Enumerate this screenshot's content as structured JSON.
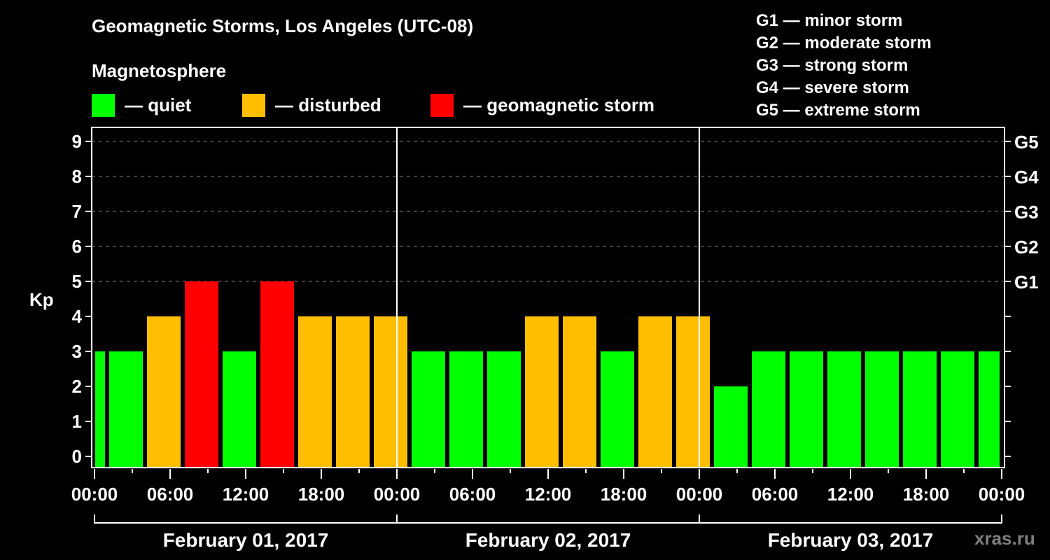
{
  "header": {
    "title": "Geomagnetic Storms, Los Angeles (UTC-08)",
    "subtitle": "Magnetosphere"
  },
  "legend": [
    {
      "label": "— quiet",
      "color": "#00ff00"
    },
    {
      "label": "— disturbed",
      "color": "#ffbf00"
    },
    {
      "label": "— geomagnetic storm",
      "color": "#ff0000"
    }
  ],
  "g_scale": [
    "G1 — minor storm",
    "G2 — moderate storm",
    "G3 — strong storm",
    "G4 — severe storm",
    "G5 — extreme storm"
  ],
  "watermark": "xras.ru",
  "colors": {
    "quiet": "#00ff00",
    "disturbed": "#ffbf00",
    "storm": "#ff0000",
    "grid": "#808080",
    "axis": "#ffffff"
  },
  "chart_data": {
    "type": "bar",
    "title": "Geomagnetic Storms, Los Angeles (UTC-08)",
    "ylabel": "Kp",
    "xlabel": "",
    "ylim": [
      0,
      9
    ],
    "yticks": [
      0,
      1,
      2,
      3,
      4,
      5,
      6,
      7,
      8,
      9
    ],
    "right_axis_labels": [
      {
        "kp": 5,
        "label": "G1"
      },
      {
        "kp": 6,
        "label": "G2"
      },
      {
        "kp": 7,
        "label": "G3"
      },
      {
        "kp": 8,
        "label": "G4"
      },
      {
        "kp": 9,
        "label": "G5"
      }
    ],
    "grid": "dashed horizontal at each Kp unit 5–9",
    "xtick_labels": [
      "00:00",
      "06:00",
      "12:00",
      "18:00",
      "00:00",
      "06:00",
      "12:00",
      "18:00",
      "00:00",
      "06:00",
      "12:00",
      "18:00",
      "00:00"
    ],
    "days": [
      "February 01, 2017",
      "February 02, 2017",
      "February 03, 2017"
    ],
    "bar_interval_hours": 3,
    "bar_start_offset_hours": 1,
    "leading_partial_bar": {
      "value": 3,
      "category": "quiet"
    },
    "series": [
      {
        "name": "Kp",
        "values": [
          3,
          4,
          5,
          3,
          5,
          4,
          4,
          4,
          3,
          3,
          3,
          4,
          4,
          3,
          4,
          4,
          2,
          3,
          3,
          3,
          3,
          3,
          3,
          3
        ],
        "categories": [
          "quiet",
          "disturbed",
          "storm",
          "quiet",
          "storm",
          "disturbed",
          "disturbed",
          "disturbed",
          "quiet",
          "quiet",
          "quiet",
          "disturbed",
          "disturbed",
          "quiet",
          "disturbed",
          "disturbed",
          "quiet",
          "quiet",
          "quiet",
          "quiet",
          "quiet",
          "quiet",
          "quiet",
          "quiet"
        ]
      }
    ],
    "legend": [
      "quiet",
      "disturbed",
      "geomagnetic storm"
    ]
  }
}
